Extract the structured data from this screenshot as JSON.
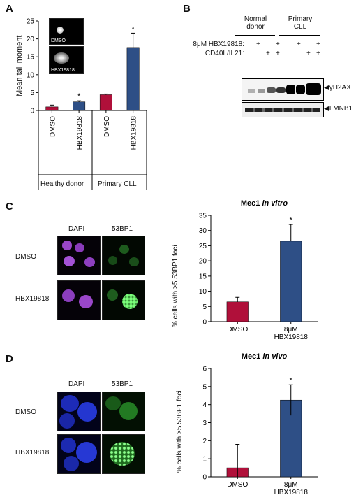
{
  "colors": {
    "red": "#b0103a",
    "blue": "#2e4f86",
    "black": "#000000"
  },
  "panel_a": {
    "letter": "A",
    "inset_labels": [
      "DMSO",
      "HBX19818"
    ],
    "group_labels": [
      "Healthy donor",
      "Primary CLL"
    ]
  },
  "panel_b": {
    "letter": "B",
    "group_labels": [
      "Normal\ndonor",
      "Primary\nCLL"
    ],
    "row_labels": [
      "8μM HBX19818:",
      "CD40L/IL21:"
    ],
    "treatment1": [
      "",
      "+",
      "",
      "+",
      "",
      "+",
      "",
      "+"
    ],
    "treatment2": [
      "",
      "",
      "+",
      "+",
      "",
      "",
      "+",
      "+"
    ],
    "blot_labels": [
      "γH2AX",
      "LMNB1"
    ]
  },
  "panel_c": {
    "letter": "C",
    "col_labels": [
      "DAPI",
      "53BP1"
    ],
    "row_labels": [
      "DMSO",
      "HBX19818"
    ]
  },
  "panel_d": {
    "letter": "D",
    "col_labels": [
      "DAPI",
      "53BP1"
    ],
    "row_labels": [
      "DMSO",
      "HBX19818"
    ]
  },
  "chart_data": [
    {
      "type": "bar",
      "panel": "A",
      "title": "",
      "xlabel": "",
      "ylabel": "Mean tail moment",
      "categories": [
        "DMSO",
        "HBX19818",
        "DMSO",
        "HBX19818"
      ],
      "values": [
        1.0,
        2.4,
        4.4,
        17.6
      ],
      "errors": [
        0.5,
        0.3,
        0.2,
        4.0
      ],
      "colors": [
        "#b0103a",
        "#2e4f86",
        "#b0103a",
        "#2e4f86"
      ],
      "significance": [
        "",
        "*",
        "",
        "*"
      ],
      "ylim": [
        0,
        25
      ],
      "yticks": [
        0,
        5,
        10,
        15,
        20,
        25
      ]
    },
    {
      "type": "bar",
      "panel": "C",
      "title": "Mec1",
      "title_suffix": "in vitro",
      "xlabel": "",
      "ylabel": "% cells with >5 53BP1 foci",
      "categories": [
        "DMSO",
        "8μM\nHBX19818"
      ],
      "values": [
        6.5,
        26.5
      ],
      "errors": [
        1.5,
        5.5
      ],
      "colors": [
        "#b0103a",
        "#2e4f86"
      ],
      "significance": [
        "",
        "*"
      ],
      "ylim": [
        0,
        35
      ],
      "yticks": [
        0,
        5,
        10,
        15,
        20,
        25,
        30,
        35
      ]
    },
    {
      "type": "bar",
      "panel": "D",
      "title": "Mec1",
      "title_suffix": "in vivo",
      "xlabel": "",
      "ylabel": "% cells with >5 53BP1 foci",
      "categories": [
        "DMSO",
        "8μM\nHBX19818"
      ],
      "values": [
        0.5,
        4.25
      ],
      "errors": [
        1.3,
        0.85
      ],
      "colors": [
        "#b0103a",
        "#2e4f86"
      ],
      "significance": [
        "",
        "*"
      ],
      "ylim": [
        0,
        6
      ],
      "yticks": [
        0,
        1,
        2,
        3,
        4,
        5,
        6
      ]
    }
  ]
}
